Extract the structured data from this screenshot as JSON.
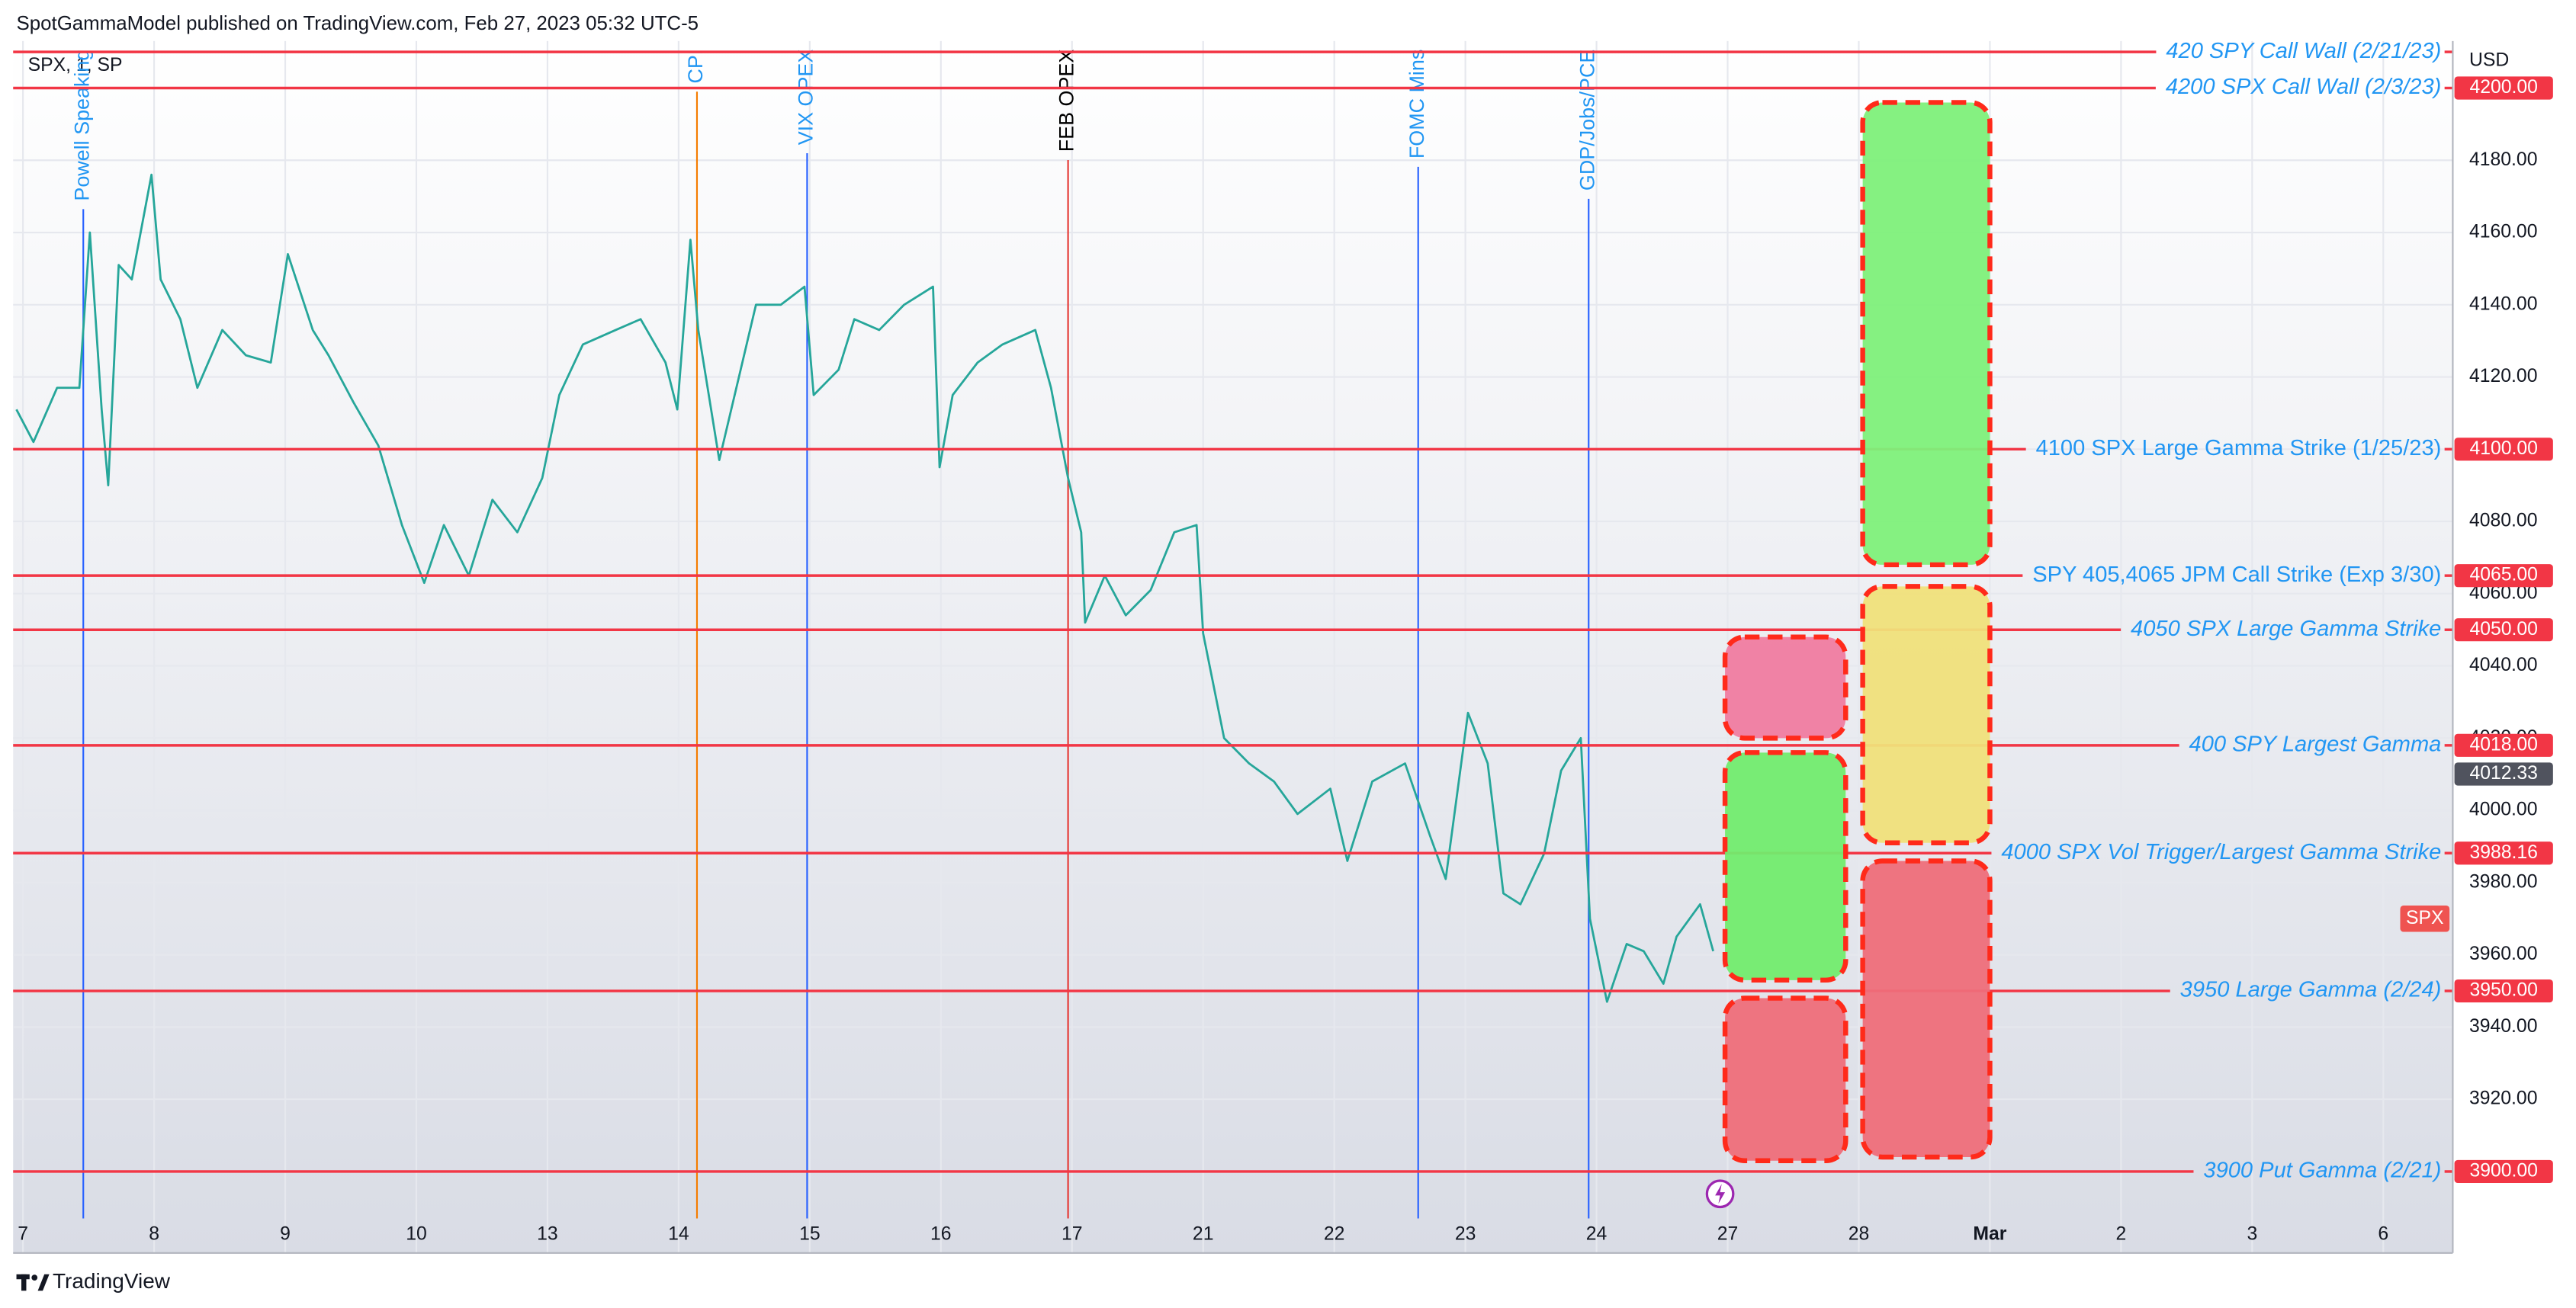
{
  "header": "SpotGammaModel published on TradingView.com, Feb 27, 2023 05:32 UTC-5",
  "footer": "TradingView",
  "chart_data": {
    "type": "line",
    "symbol": "SPX, 1, SP",
    "currency": "USD",
    "xlim": [
      -0.075,
      18.53
    ],
    "ylim": [
      3887,
      4213
    ],
    "grid": true,
    "xticks": [
      {
        "value": 0,
        "label": "7"
      },
      {
        "value": 1,
        "label": "8"
      },
      {
        "value": 2,
        "label": "9"
      },
      {
        "value": 3,
        "label": "10"
      },
      {
        "value": 4,
        "label": "13"
      },
      {
        "value": 5,
        "label": "14"
      },
      {
        "value": 6,
        "label": "15"
      },
      {
        "value": 7,
        "label": "16"
      },
      {
        "value": 8,
        "label": "17"
      },
      {
        "value": 9,
        "label": "21"
      },
      {
        "value": 10,
        "label": "22"
      },
      {
        "value": 11,
        "label": "23"
      },
      {
        "value": 12,
        "label": "24"
      },
      {
        "value": 13,
        "label": "27"
      },
      {
        "value": 14,
        "label": "28"
      },
      {
        "value": 15,
        "label": "Mar"
      },
      {
        "value": 16,
        "label": "2"
      },
      {
        "value": 17,
        "label": "3"
      },
      {
        "value": 18,
        "label": "6"
      }
    ],
    "yticks": [
      {
        "value": 3920,
        "label": "3920.00"
      },
      {
        "value": 3940,
        "label": "3940.00"
      },
      {
        "value": 3960,
        "label": "3960.00"
      },
      {
        "value": 3980,
        "label": "3980.00"
      },
      {
        "value": 4000,
        "label": "4000.00"
      },
      {
        "value": 4020,
        "label": "4020.00"
      },
      {
        "value": 4040,
        "label": "4040.00"
      },
      {
        "value": 4060,
        "label": "4060.00"
      },
      {
        "value": 4080,
        "label": "4080.00"
      },
      {
        "value": 4100,
        "label": "4100.00"
      },
      {
        "value": 4120,
        "label": "4120.00"
      },
      {
        "value": 4140,
        "label": "4140.00"
      },
      {
        "value": 4160,
        "label": "4160.00"
      },
      {
        "value": 4180,
        "label": "4180.00"
      }
    ],
    "series": [
      {
        "color": "#26a69a",
        "x": [
          -0.05,
          0.08,
          0.26,
          0.43,
          0.51,
          0.6,
          0.65,
          0.73,
          0.83,
          0.98,
          1.05,
          1.2,
          1.33,
          1.52,
          1.7,
          1.89,
          2.02,
          2.21,
          2.33,
          2.52,
          2.71,
          2.89,
          3.06,
          3.21,
          3.4,
          3.58,
          3.77,
          3.96,
          4.09,
          4.27,
          4.52,
          4.71,
          4.9,
          4.99,
          5.09,
          5.15,
          5.31,
          5.46,
          5.59,
          5.78,
          5.96,
          6.03,
          6.22,
          6.34,
          6.53,
          6.72,
          6.94,
          6.99,
          7.09,
          7.28,
          7.47,
          7.72,
          7.84,
          7.97,
          8.07,
          8.1,
          8.25,
          8.41,
          8.6,
          8.78,
          8.95,
          9.0,
          9.16,
          9.35,
          9.54,
          9.72,
          9.97,
          10.1,
          10.29,
          10.54,
          10.73,
          10.85,
          11.02,
          11.17,
          11.29,
          11.42,
          11.6,
          11.73,
          11.88,
          11.95,
          12.08,
          12.23,
          12.36,
          12.51,
          12.61,
          12.79,
          12.89
        ],
        "values": [
          4111,
          4102,
          4117,
          4117,
          4160,
          4111,
          4090,
          4151,
          4147,
          4176,
          4147,
          4136,
          4117,
          4133,
          4126,
          4124,
          4154,
          4133,
          4126,
          4113,
          4101,
          4079,
          4063,
          4079,
          4065,
          4086,
          4077,
          4092,
          4115,
          4129,
          4133,
          4136,
          4124,
          4111,
          4158,
          4133,
          4097,
          4120,
          4140,
          4140,
          4145,
          4115,
          4122,
          4136,
          4133,
          4140,
          4145,
          4095,
          4115,
          4124,
          4129,
          4133,
          4117,
          4092,
          4077,
          4052,
          4065,
          4054,
          4061,
          4077,
          4079,
          4049,
          4020,
          4013,
          4008,
          3999,
          4006,
          3986,
          4008,
          4013,
          3993,
          3981,
          4027,
          4013,
          3977,
          3974,
          3988,
          4011,
          4020,
          3970,
          3947,
          3963,
          3961,
          3952,
          3965,
          3974,
          3961
        ]
      }
    ],
    "levels": [
      {
        "value": 4210,
        "label": "420 SPY Call Wall (2/21/23)",
        "italic": true
      },
      {
        "value": 4200,
        "label": "4200 SPX Call Wall (2/3/23)",
        "badge": "4200.00",
        "italic": true
      },
      {
        "value": 4100,
        "label": "4100 SPX Large Gamma Strike (1/25/23)",
        "badge": "4100.00",
        "italic": false
      },
      {
        "value": 4065,
        "label": "SPY 405,4065 JPM Call Strike (Exp 3/30)",
        "badge": "4065.00",
        "italic": false
      },
      {
        "value": 4050,
        "label": "4050 SPX Large Gamma Strike",
        "badge": "4050.00",
        "italic": true
      },
      {
        "value": 4018,
        "label": "400 SPY Largest Gamma",
        "badge": "4018.00",
        "italic": true
      },
      {
        "value": 3988.16,
        "label": "4000 SPX Vol Trigger/Largest Gamma Strike",
        "badge": "3988.16",
        "italic": true
      },
      {
        "value": 3950,
        "label": "3950 Large Gamma (2/24)",
        "badge": "3950.00",
        "italic": true
      },
      {
        "value": 3900,
        "label": "3900 Put Gamma (2/21)",
        "badge": "3900.00",
        "italic": true
      }
    ],
    "last_price": 4012.33,
    "price_tag": {
      "text": "SPX",
      "value": 3970
    },
    "events": [
      {
        "x": 0.46,
        "label": "Powell Speaking",
        "color": "#2962ff",
        "text_color": "#2196f3"
      },
      {
        "x": 5.14,
        "label": "CPI",
        "color": "#f57c00",
        "text_color": "#2196f3"
      },
      {
        "x": 5.98,
        "label": "VIX OPEX",
        "color": "#2962ff",
        "text_color": "#2196f3"
      },
      {
        "x": 7.97,
        "label": "FEB OPEX",
        "color": "#e53935",
        "text_color": "#000000"
      },
      {
        "x": 10.64,
        "label": "FOMC Mins",
        "color": "#2962ff",
        "text_color": "#2196f3"
      },
      {
        "x": 11.94,
        "label": "GDP/Jobs/PCE",
        "color": "#2962ff",
        "text_color": "#2196f3"
      }
    ],
    "zones": [
      {
        "color": "#f07ca0",
        "x": [
          12.98,
          13.9
        ],
        "y": [
          4048,
          4020
        ]
      },
      {
        "color": "#72ec6e",
        "x": [
          12.98,
          13.9
        ],
        "y": [
          4016,
          3953
        ]
      },
      {
        "color": "#ee6e7a",
        "x": [
          12.98,
          13.9
        ],
        "y": [
          3948,
          3903
        ]
      },
      {
        "color": "#7ef07a",
        "x": [
          14.03,
          15.0
        ],
        "y": [
          4196,
          4068
        ]
      },
      {
        "color": "#f0e07a",
        "x": [
          14.03,
          15.0
        ],
        "y": [
          4062,
          3991
        ]
      },
      {
        "color": "#ee6e7a",
        "x": [
          14.03,
          15.0
        ],
        "y": [
          3986,
          3904
        ]
      }
    ]
  }
}
